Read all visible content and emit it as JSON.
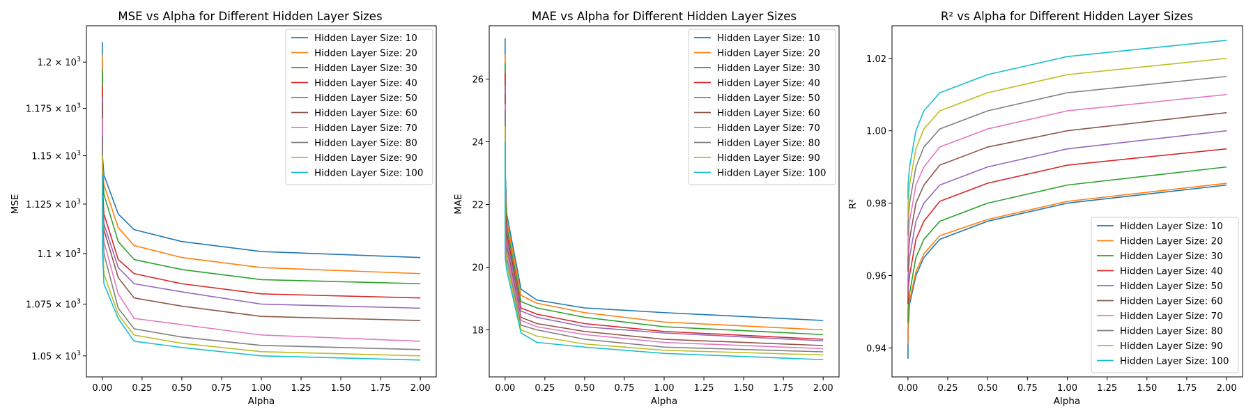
{
  "figure": {
    "series_colors": [
      "#1f77b4",
      "#ff7f0e",
      "#2ca02c",
      "#d62728",
      "#9467bd",
      "#8c564b",
      "#e377c2",
      "#7f7f7f",
      "#bcbd22",
      "#17becf"
    ],
    "legend_entries": [
      "Hidden Layer Size: 10",
      "Hidden Layer Size: 20",
      "Hidden Layer Size: 30",
      "Hidden Layer Size: 40",
      "Hidden Layer Size: 50",
      "Hidden Layer Size: 60",
      "Hidden Layer Size: 70",
      "Hidden Layer Size: 80",
      "Hidden Layer Size: 90",
      "Hidden Layer Size: 100"
    ]
  },
  "chart_data": [
    {
      "type": "line",
      "title": "MSE vs Alpha for Different Hidden Layer Sizes",
      "xlabel": "Alpha",
      "ylabel": "MSE",
      "xlim": [
        -0.1,
        2.1
      ],
      "ylim": [
        1040,
        1220
      ],
      "x_ticks": [
        0.0,
        0.25,
        0.5,
        0.75,
        1.0,
        1.25,
        1.5,
        1.75,
        2.0
      ],
      "x_tick_labels": [
        "0.00",
        "0.25",
        "0.50",
        "0.75",
        "1.00",
        "1.25",
        "1.50",
        "1.75",
        "2.00"
      ],
      "y_ticks": [
        1050,
        1075,
        1100,
        1125,
        1150,
        1175,
        1200
      ],
      "y_tick_labels": [
        {
          "mant": "1.05 × 10",
          "exp": "3"
        },
        {
          "mant": "1.075 × 10",
          "exp": "3"
        },
        {
          "mant": "1.1 × 10",
          "exp": "3"
        },
        {
          "mant": "1.125 × 10",
          "exp": "3"
        },
        {
          "mant": "1.15 × 10",
          "exp": "3"
        },
        {
          "mant": "1.175 × 10",
          "exp": "3"
        },
        {
          "mant": "1.2 × 10",
          "exp": "3"
        }
      ],
      "log_scale_y": true,
      "legend_position": "upper-right",
      "x": [
        0.0001,
        0.001,
        0.01,
        0.1,
        0.2,
        0.5,
        1.0,
        2.0
      ],
      "series": [
        {
          "name": "Hidden Layer Size: 10",
          "values": [
            1211,
            1150,
            1140,
            1120,
            1112,
            1106,
            1101,
            1098
          ]
        },
        {
          "name": "Hidden Layer Size: 20",
          "values": [
            1204,
            1145,
            1135,
            1113,
            1104,
            1098,
            1093,
            1090
          ]
        },
        {
          "name": "Hidden Layer Size: 30",
          "values": [
            1196,
            1142,
            1130,
            1106,
            1097,
            1092,
            1087,
            1085
          ]
        },
        {
          "name": "Hidden Layer Size: 40",
          "values": [
            1187,
            1135,
            1120,
            1097,
            1090,
            1085,
            1080,
            1078
          ]
        },
        {
          "name": "Hidden Layer Size: 50",
          "values": [
            1181,
            1132,
            1115,
            1093,
            1085,
            1081,
            1075,
            1073
          ]
        },
        {
          "name": "Hidden Layer Size: 60",
          "values": [
            1178,
            1130,
            1112,
            1088,
            1078,
            1074,
            1069,
            1067
          ]
        },
        {
          "name": "Hidden Layer Size: 70",
          "values": [
            1170,
            1125,
            1106,
            1080,
            1068,
            1065,
            1060,
            1057
          ]
        },
        {
          "name": "Hidden Layer Size: 80",
          "values": [
            1160,
            1120,
            1100,
            1073,
            1063,
            1059,
            1055,
            1053
          ]
        },
        {
          "name": "Hidden Layer Size: 90",
          "values": [
            1150,
            1110,
            1090,
            1070,
            1060,
            1056,
            1052,
            1050
          ]
        },
        {
          "name": "Hidden Layer Size: 100",
          "values": [
            1140,
            1101,
            1085,
            1068,
            1057,
            1054,
            1050,
            1048
          ]
        }
      ]
    },
    {
      "type": "line",
      "title": "MAE vs Alpha for Different Hidden Layer Sizes",
      "xlabel": "Alpha",
      "ylabel": "MAE",
      "xlim": [
        -0.1,
        2.1
      ],
      "ylim": [
        16.5,
        27.7
      ],
      "x_ticks": [
        0.0,
        0.25,
        0.5,
        0.75,
        1.0,
        1.25,
        1.5,
        1.75,
        2.0
      ],
      "x_tick_labels": [
        "0.00",
        "0.25",
        "0.50",
        "0.75",
        "1.00",
        "1.25",
        "1.50",
        "1.75",
        "2.00"
      ],
      "y_ticks": [
        18,
        20,
        22,
        24,
        26
      ],
      "y_tick_labels": [
        "18",
        "20",
        "22",
        "24",
        "26"
      ],
      "legend_position": "upper-right",
      "x": [
        0.0001,
        0.001,
        0.01,
        0.1,
        0.2,
        0.5,
        1.0,
        2.0
      ],
      "series": [
        {
          "name": "Hidden Layer Size: 10",
          "values": [
            27.3,
            23.1,
            21.7,
            19.3,
            18.95,
            18.7,
            18.55,
            18.3
          ]
        },
        {
          "name": "Hidden Layer Size: 20",
          "values": [
            26.8,
            22.5,
            21.5,
            19.1,
            18.85,
            18.55,
            18.25,
            18.0
          ]
        },
        {
          "name": "Hidden Layer Size: 30",
          "values": [
            26.5,
            22.2,
            21.3,
            18.9,
            18.7,
            18.4,
            18.1,
            17.85
          ]
        },
        {
          "name": "Hidden Layer Size: 40",
          "values": [
            26.2,
            21.8,
            21.1,
            18.7,
            18.5,
            18.2,
            17.95,
            17.7
          ]
        },
        {
          "name": "Hidden Layer Size: 50",
          "values": [
            25.8,
            21.5,
            20.9,
            18.6,
            18.4,
            18.1,
            17.9,
            17.65
          ]
        },
        {
          "name": "Hidden Layer Size: 60",
          "values": [
            25.5,
            21.2,
            20.7,
            18.4,
            18.2,
            17.95,
            17.7,
            17.5
          ]
        },
        {
          "name": "Hidden Layer Size: 70",
          "values": [
            25.2,
            21.0,
            20.5,
            18.3,
            18.1,
            17.85,
            17.6,
            17.4
          ]
        },
        {
          "name": "Hidden Layer Size: 80",
          "values": [
            25.0,
            20.8,
            20.3,
            18.15,
            18.0,
            17.7,
            17.45,
            17.3
          ]
        },
        {
          "name": "Hidden Layer Size: 90",
          "values": [
            24.5,
            20.6,
            20.1,
            18.0,
            17.8,
            17.55,
            17.35,
            17.2
          ]
        },
        {
          "name": "Hidden Layer Size: 100",
          "values": [
            24.0,
            20.3,
            19.9,
            17.9,
            17.6,
            17.45,
            17.25,
            17.05
          ]
        }
      ]
    },
    {
      "type": "line",
      "title": "R² vs Alpha for Different Hidden Layer Sizes",
      "xlabel": "Alpha",
      "ylabel": "R²",
      "xlim": [
        -0.1,
        2.1
      ],
      "ylim": [
        0.932,
        1.029
      ],
      "x_ticks": [
        0.0,
        0.25,
        0.5,
        0.75,
        1.0,
        1.25,
        1.5,
        1.75,
        2.0
      ],
      "x_tick_labels": [
        "0.00",
        "0.25",
        "0.50",
        "0.75",
        "1.00",
        "1.25",
        "1.50",
        "1.75",
        "2.00"
      ],
      "y_ticks": [
        0.94,
        0.96,
        0.98,
        1.0,
        1.02
      ],
      "y_tick_labels": [
        "0.94",
        "0.96",
        "0.98",
        "1.00",
        "1.02"
      ],
      "legend_position": "lower-right",
      "x": [
        0.0001,
        0.001,
        0.01,
        0.05,
        0.1,
        0.2,
        0.5,
        1.0,
        2.0
      ],
      "series": [
        {
          "name": "Hidden Layer Size: 10",
          "values": [
            0.937,
            0.945,
            0.952,
            0.96,
            0.965,
            0.97,
            0.975,
            0.98,
            0.985
          ]
        },
        {
          "name": "Hidden Layer Size: 20",
          "values": [
            0.941,
            0.948,
            0.953,
            0.961,
            0.966,
            0.971,
            0.9755,
            0.9805,
            0.9855
          ]
        },
        {
          "name": "Hidden Layer Size: 30",
          "values": [
            0.947,
            0.951,
            0.955,
            0.965,
            0.97,
            0.975,
            0.98,
            0.985,
            0.99
          ]
        },
        {
          "name": "Hidden Layer Size: 40",
          "values": [
            0.952,
            0.956,
            0.96,
            0.97,
            0.975,
            0.9805,
            0.9855,
            0.9905,
            0.995
          ]
        },
        {
          "name": "Hidden Layer Size: 50",
          "values": [
            0.956,
            0.96,
            0.965,
            0.975,
            0.98,
            0.985,
            0.99,
            0.995,
            1.0
          ]
        },
        {
          "name": "Hidden Layer Size: 60",
          "values": [
            0.961,
            0.965,
            0.97,
            0.98,
            0.985,
            0.9905,
            0.9955,
            1.0,
            1.005
          ]
        },
        {
          "name": "Hidden Layer Size: 70",
          "values": [
            0.966,
            0.97,
            0.975,
            0.985,
            0.99,
            0.9955,
            1.0005,
            1.0055,
            1.01
          ]
        },
        {
          "name": "Hidden Layer Size: 80",
          "values": [
            0.971,
            0.975,
            0.98,
            0.99,
            0.9955,
            1.0005,
            1.0055,
            1.0105,
            1.015
          ]
        },
        {
          "name": "Hidden Layer Size: 90",
          "values": [
            0.976,
            0.98,
            0.985,
            0.995,
            1.0005,
            1.0055,
            1.0105,
            1.0155,
            1.02
          ]
        },
        {
          "name": "Hidden Layer Size: 100",
          "values": [
            0.981,
            0.985,
            0.99,
            1.0,
            1.0055,
            1.0105,
            1.0155,
            1.0205,
            1.025
          ]
        }
      ]
    }
  ]
}
